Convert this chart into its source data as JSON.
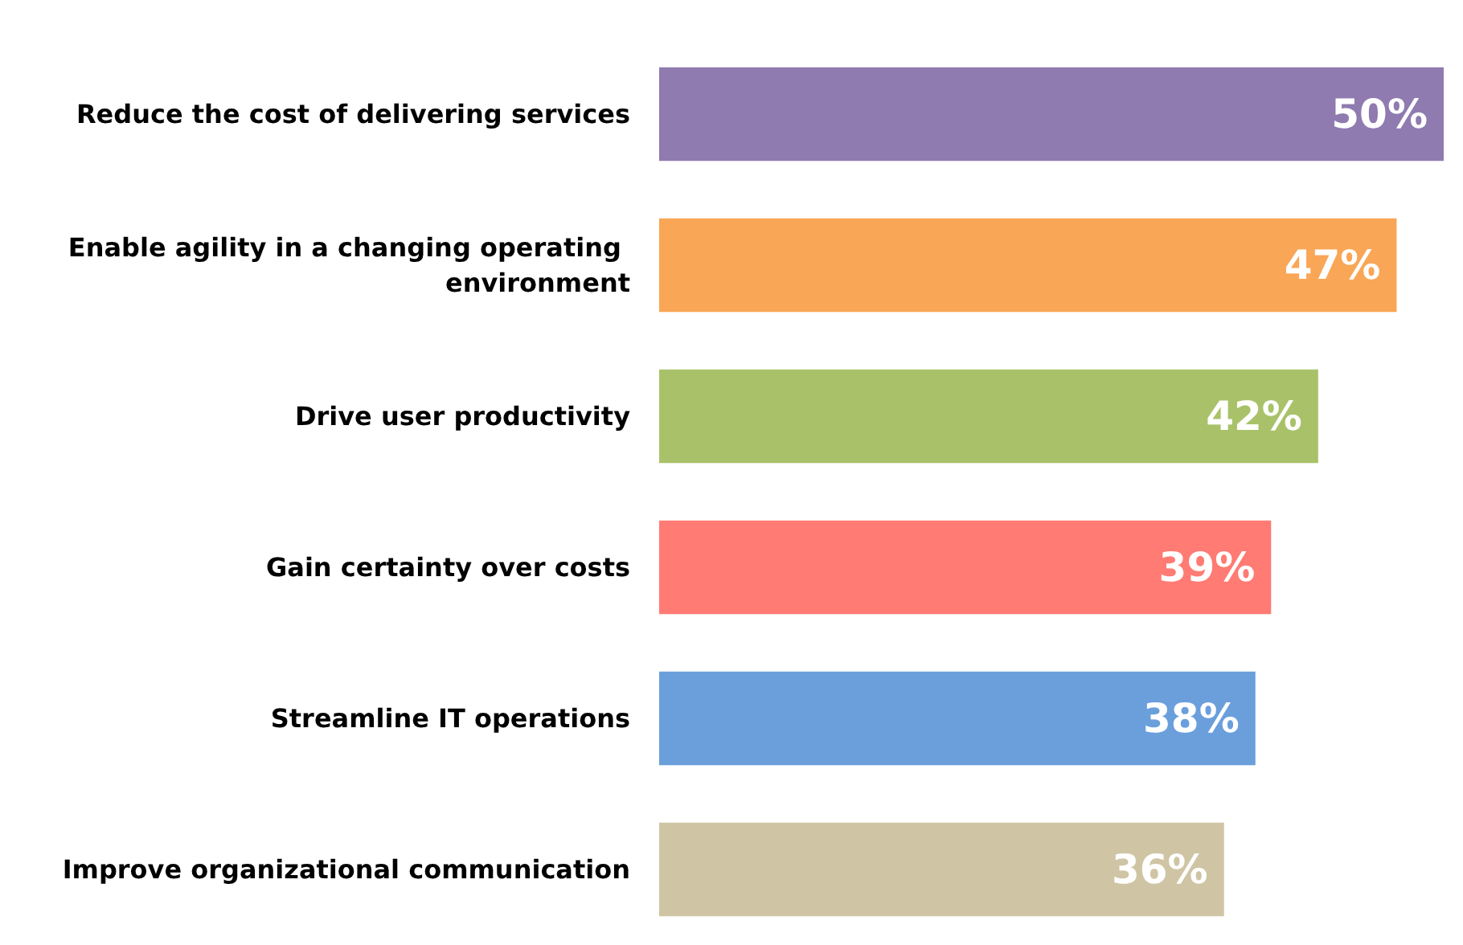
{
  "chart_data": {
    "type": "bar",
    "orientation": "horizontal",
    "categories": [
      "Reduce the cost of delivering services",
      "Enable agility in a changing operating environment",
      "Drive user productivity",
      "Gain certainty over costs",
      "Streamline IT operations",
      "Improve organizational communication"
    ],
    "values": [
      50,
      47,
      42,
      39,
      38,
      36
    ],
    "value_labels": [
      "50%",
      "47%",
      "42%",
      "39%",
      "38%",
      "36%"
    ],
    "colors": [
      "#8f7bb0",
      "#f9a656",
      "#a9c26a",
      "#ff7b73",
      "#6a9fdc",
      "#cfc5a4"
    ],
    "xlim": [
      0,
      50
    ],
    "tick_labels": "y"
  }
}
